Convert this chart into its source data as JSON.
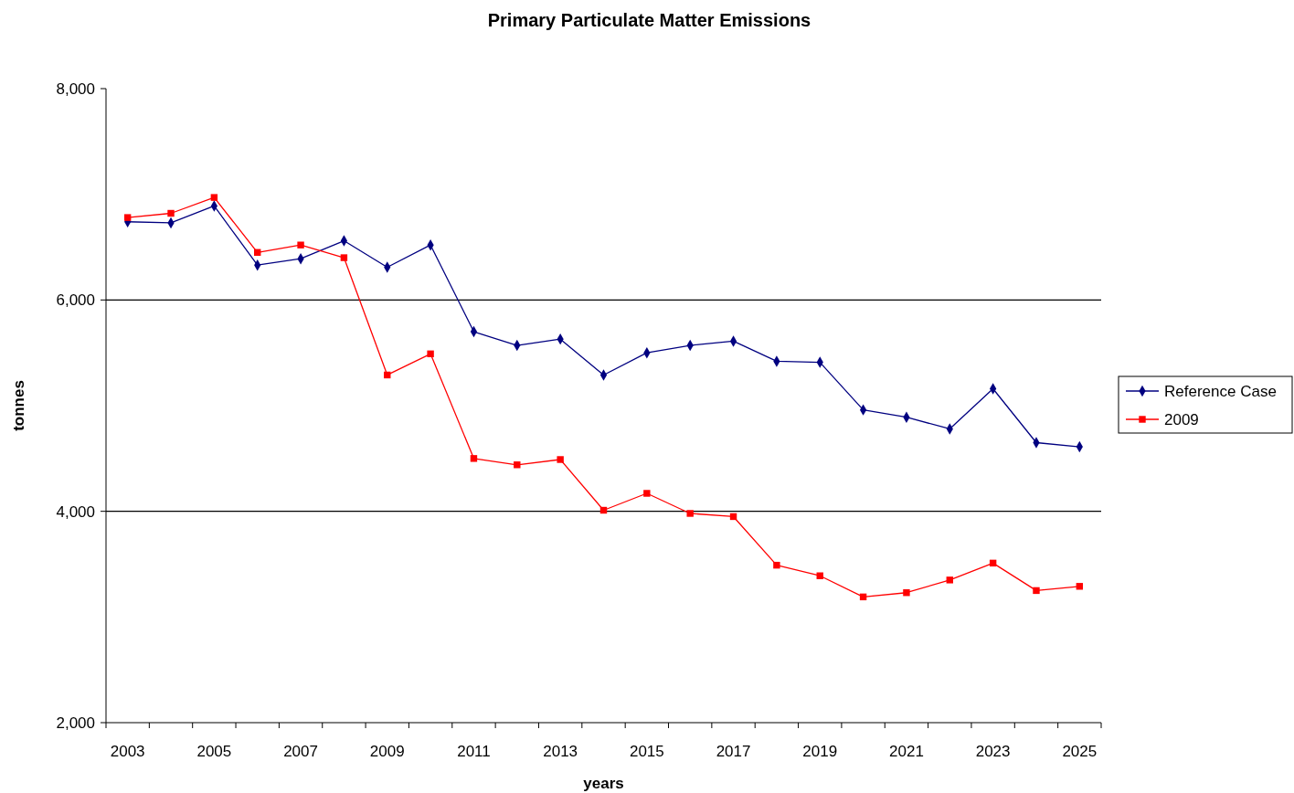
{
  "chart_data": {
    "type": "line",
    "title": "Primary Particulate Matter Emissions",
    "xlabel": "years",
    "ylabel": "tonnes",
    "categories": [
      "2003",
      null,
      "2005",
      null,
      "2007",
      null,
      "2009",
      null,
      "2011",
      null,
      "2013",
      null,
      "2015",
      null,
      "2017",
      null,
      "2019",
      null,
      "2021",
      null,
      "2023",
      null,
      "2025"
    ],
    "series": [
      {
        "name": "Reference Case",
        "color": "#000080",
        "marker": "diamond",
        "values": [
          6740,
          6730,
          6890,
          6330,
          6390,
          6560,
          6310,
          6520,
          5700,
          5570,
          5630,
          5290,
          5500,
          5570,
          5610,
          5420,
          5410,
          4960,
          4890,
          4780,
          5160,
          4650,
          4610
        ]
      },
      {
        "name": "2009",
        "color": "#ff0000",
        "marker": "square",
        "values": [
          6780,
          6820,
          6970,
          6450,
          6520,
          6400,
          5290,
          5490,
          4500,
          4440,
          4490,
          4010,
          4170,
          3980,
          3950,
          3490,
          3390,
          3190,
          3230,
          3350,
          3510,
          3250,
          3290
        ]
      }
    ],
    "ylim": [
      2000,
      8000
    ],
    "yticks": [
      {
        "value": 2000,
        "label": "2,000"
      },
      {
        "value": 4000,
        "label": "4,000"
      },
      {
        "value": 6000,
        "label": "6,000"
      },
      {
        "value": 8000,
        "label": "8,000"
      }
    ],
    "grid": "y",
    "legend": "right",
    "line_style": "solid"
  }
}
